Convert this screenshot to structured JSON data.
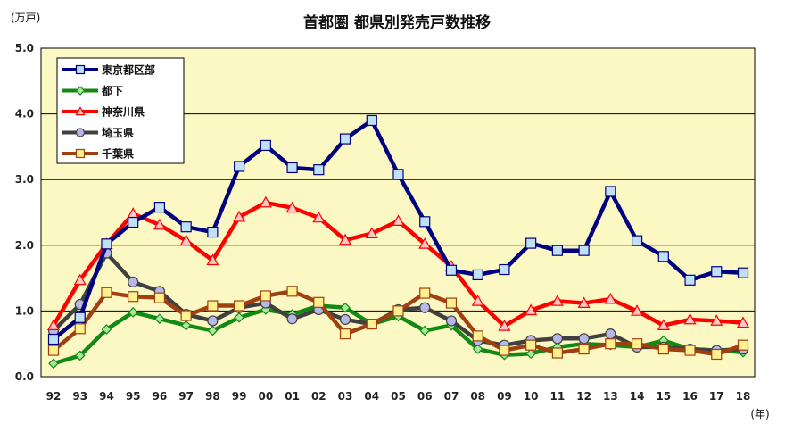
{
  "chart_data": {
    "type": "line",
    "title": "首都圏 都県別発売戸数推移",
    "ylabel": "(万戸)",
    "xlabel": "(年)",
    "ylim": [
      0,
      5
    ],
    "yticks": [
      "0.0",
      "1.0",
      "2.0",
      "3.0",
      "4.0",
      "5.0"
    ],
    "grid": true,
    "legend_position": "top-left",
    "background_color": "#fcf8c4",
    "categories": [
      "92",
      "93",
      "94",
      "95",
      "96",
      "97",
      "98",
      "99",
      "00",
      "01",
      "02",
      "03",
      "04",
      "05",
      "06",
      "07",
      "08",
      "09",
      "10",
      "11",
      "12",
      "13",
      "14",
      "15",
      "16",
      "17",
      "18"
    ],
    "series": [
      {
        "name": "東京都区部",
        "color": "#000080",
        "marker": "square",
        "marker_fill": "#c0e0f8",
        "values": [
          0.57,
          0.9,
          2.02,
          2.35,
          2.58,
          2.28,
          2.2,
          3.2,
          3.52,
          3.18,
          3.15,
          3.62,
          3.9,
          3.08,
          2.36,
          1.62,
          1.55,
          1.63,
          2.03,
          1.92,
          1.92,
          2.82,
          2.07,
          1.83,
          1.47,
          1.6,
          1.58
        ]
      },
      {
        "name": "都下",
        "color": "#108a10",
        "marker": "diamond",
        "marker_fill": "#a8e8a0",
        "values": [
          0.2,
          0.32,
          0.72,
          0.98,
          0.88,
          0.78,
          0.7,
          0.9,
          1.02,
          0.95,
          1.08,
          1.05,
          0.8,
          0.92,
          0.7,
          0.78,
          0.42,
          0.33,
          0.35,
          0.45,
          0.5,
          0.48,
          0.45,
          0.55,
          0.42,
          0.4,
          0.37
        ]
      },
      {
        "name": "神奈川県",
        "color": "#ff0000",
        "marker": "triangle",
        "marker_fill": "#ffc8c8",
        "values": [
          0.78,
          1.47,
          2.02,
          2.48,
          2.31,
          2.07,
          1.77,
          2.43,
          2.65,
          2.57,
          2.42,
          2.08,
          2.18,
          2.37,
          2.02,
          1.68,
          1.15,
          0.77,
          1.01,
          1.15,
          1.12,
          1.18,
          1.0,
          0.78,
          0.87,
          0.85,
          0.82
        ]
      },
      {
        "name": "埼玉県",
        "color": "#404040",
        "marker": "circle",
        "marker_fill": "#b8b8e8",
        "values": [
          0.7,
          1.1,
          1.88,
          1.44,
          1.3,
          0.95,
          0.85,
          1.05,
          1.12,
          0.88,
          1.02,
          0.87,
          0.8,
          1.02,
          1.05,
          0.85,
          0.55,
          0.48,
          0.55,
          0.58,
          0.58,
          0.65,
          0.45,
          0.45,
          0.42,
          0.4,
          0.42
        ]
      },
      {
        "name": "千葉県",
        "color": "#a04010",
        "marker": "square",
        "marker_fill": "#fff090",
        "values": [
          0.4,
          0.73,
          1.28,
          1.22,
          1.2,
          0.93,
          1.08,
          1.08,
          1.23,
          1.3,
          1.13,
          0.65,
          0.8,
          1.0,
          1.27,
          1.12,
          0.62,
          0.4,
          0.48,
          0.36,
          0.42,
          0.5,
          0.5,
          0.42,
          0.4,
          0.34,
          0.48
        ]
      }
    ]
  }
}
